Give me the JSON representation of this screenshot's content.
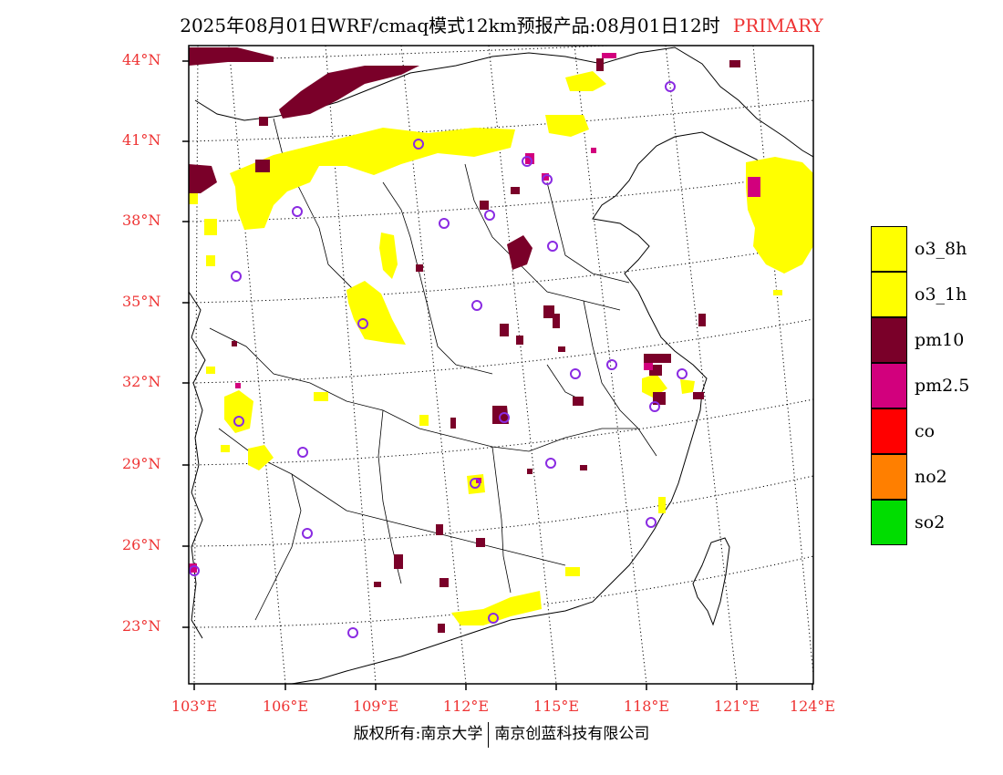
{
  "header": {
    "title": "2025年08月01日WRF/cmaq模式12km预报产品:08月01日12时",
    "tag": "PRIMARY",
    "tag_color": "#ee3333"
  },
  "axes": {
    "lat_labels": [
      "44°N",
      "41°N",
      "38°N",
      "35°N",
      "32°N",
      "29°N",
      "26°N",
      "23°N"
    ],
    "lon_labels": [
      "103°E",
      "106°E",
      "109°E",
      "112°E",
      "115°E",
      "118°E",
      "121°E",
      "124°E"
    ],
    "label_color": "#ee3333"
  },
  "legend": {
    "items": [
      {
        "label": "o3_8h",
        "color": "#ffff00"
      },
      {
        "label": "o3_1h",
        "color": "#ffff00"
      },
      {
        "label": "pm10",
        "color": "#7a0029"
      },
      {
        "label": "pm2.5",
        "color": "#d2007d"
      },
      {
        "label": "co",
        "color": "#ff0000"
      },
      {
        "label": "no2",
        "color": "#ff7f00"
      },
      {
        "label": "so2",
        "color": "#00dd00"
      }
    ]
  },
  "map": {
    "station_marker_color": "#8a2be2"
  },
  "footer": {
    "left": "版权所有:南京大学",
    "right": "南京创蓝科技有限公司"
  }
}
